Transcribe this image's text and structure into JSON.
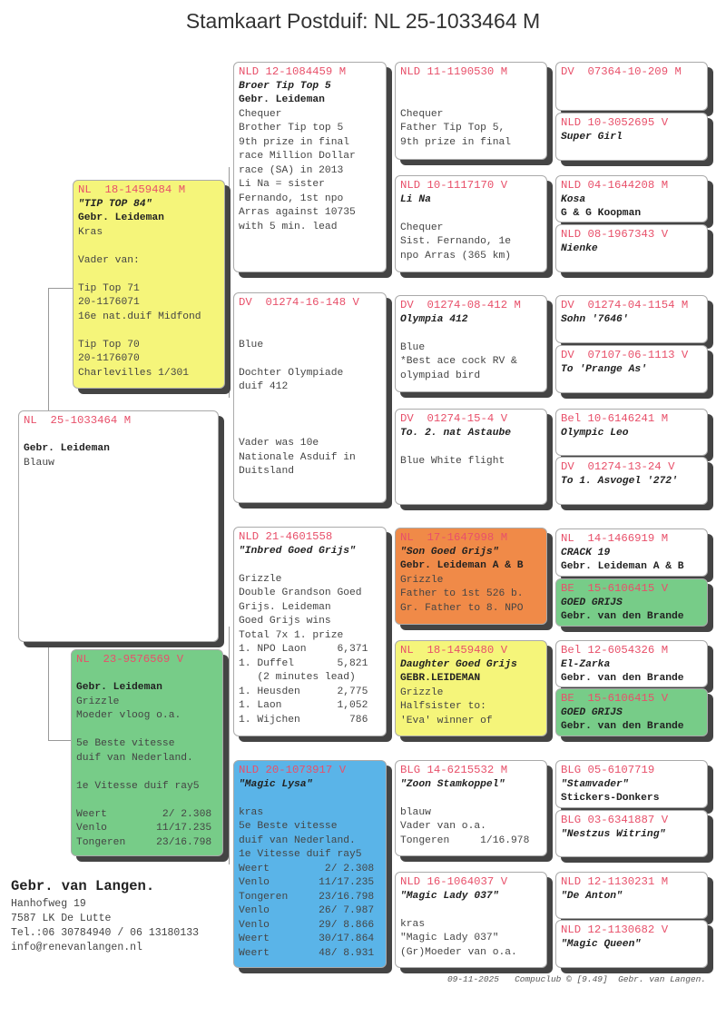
{
  "title": "Stamkaart Postduif: NL  25-1033464 M",
  "colors": {
    "ring": "#e8506a",
    "yellow": "#f5f57a",
    "green": "#77cc88",
    "orange": "#f08a48",
    "blue": "#5ab4e8",
    "white": "#ffffff"
  },
  "cards": {
    "subject": {
      "color": "white",
      "rows": [
        [
          "r",
          "NL  25-1033464 M"
        ],
        [
          "t",
          ""
        ],
        [
          "o",
          "Gebr. Leideman"
        ],
        [
          "t",
          "Blauw"
        ]
      ]
    },
    "sire": {
      "color": "yellow",
      "rows": [
        [
          "r",
          "NL  18-1459484 M"
        ],
        [
          "n",
          "\"TIP TOP 84\""
        ],
        [
          "o",
          "Gebr. Leideman"
        ],
        [
          "t",
          "Kras"
        ],
        [
          "t",
          ""
        ],
        [
          "t",
          "Vader van:"
        ],
        [
          "t",
          ""
        ],
        [
          "t",
          "Tip Top 71"
        ],
        [
          "t",
          "20-1176071"
        ],
        [
          "t",
          "16e nat.duif Midfond"
        ],
        [
          "t",
          ""
        ],
        [
          "t",
          "Tip Top 70"
        ],
        [
          "t",
          "20-1176070"
        ],
        [
          "t",
          "Charlevilles 1/301"
        ]
      ]
    },
    "dam": {
      "color": "green",
      "rows": [
        [
          "r",
          "NL  23-9576569 V"
        ],
        [
          "t",
          ""
        ],
        [
          "o",
          "Gebr. Leideman"
        ],
        [
          "t",
          "Grizzle"
        ],
        [
          "t",
          "Moeder vloog o.a."
        ],
        [
          "t",
          ""
        ],
        [
          "t",
          "5e Beste vitesse"
        ],
        [
          "t",
          "duif van Nederland."
        ],
        [
          "t",
          ""
        ],
        [
          "t",
          "1e Vitesse duif ray5"
        ],
        [
          "t",
          ""
        ],
        [
          "t",
          "Weert         2/ 2.308"
        ],
        [
          "t",
          "Venlo        11/17.235"
        ],
        [
          "t",
          "Tongeren     23/16.798"
        ]
      ]
    },
    "ss": {
      "color": "white",
      "rows": [
        [
          "r",
          "NLD 12-1084459 M"
        ],
        [
          "n",
          "Broer Tip Top 5"
        ],
        [
          "o",
          "Gebr. Leideman"
        ],
        [
          "t",
          "Chequer"
        ],
        [
          "t",
          "Brother Tip top 5"
        ],
        [
          "t",
          "9th prize in final"
        ],
        [
          "t",
          "race Million Dollar"
        ],
        [
          "t",
          "race (SA) in 2013"
        ],
        [
          "t",
          "Li Na = sister"
        ],
        [
          "t",
          "Fernando, 1st npo"
        ],
        [
          "t",
          "Arras against 10735"
        ],
        [
          "t",
          "with 5 min. lead"
        ]
      ]
    },
    "sd": {
      "color": "white",
      "rows": [
        [
          "r",
          "DV  01274-16-148 V"
        ],
        [
          "t",
          ""
        ],
        [
          "t",
          ""
        ],
        [
          "t",
          "Blue"
        ],
        [
          "t",
          ""
        ],
        [
          "t",
          "Dochter Olympiade"
        ],
        [
          "t",
          "duif 412"
        ],
        [
          "t",
          ""
        ],
        [
          "t",
          ""
        ],
        [
          "t",
          ""
        ],
        [
          "t",
          "Vader was 10e"
        ],
        [
          "t",
          "Nationale Asduif in"
        ],
        [
          "t",
          "Duitsland"
        ]
      ]
    },
    "ds": {
      "color": "white",
      "rows": [
        [
          "r",
          "NLD 21-4601558"
        ],
        [
          "n",
          "\"Inbred Goed Grijs\""
        ],
        [
          "t",
          ""
        ],
        [
          "t",
          "Grizzle"
        ],
        [
          "t",
          "Double Grandson Goed"
        ],
        [
          "t",
          "Grijs. Leideman"
        ],
        [
          "t",
          "Goed Grijs wins"
        ],
        [
          "t",
          "Total 7x 1. prize"
        ],
        [
          "t",
          "1. NPO Laon     6,371"
        ],
        [
          "t",
          "1. Duffel       5,821"
        ],
        [
          "t",
          "   (2 minutes lead)"
        ],
        [
          "t",
          "1. Heusden      2,775"
        ],
        [
          "t",
          "1. Laon         1,052"
        ],
        [
          "t",
          "1. Wijchen        786"
        ]
      ]
    },
    "dd": {
      "color": "blue",
      "rows": [
        [
          "r",
          "NLD 20-1073917 V"
        ],
        [
          "n",
          "\"Magic Lysa\""
        ],
        [
          "t",
          ""
        ],
        [
          "t",
          "kras"
        ],
        [
          "t",
          "5e Beste vitesse"
        ],
        [
          "t",
          "duif van Nederland."
        ],
        [
          "t",
          "1e Vitesse duif ray5"
        ],
        [
          "t",
          "Weert         2/ 2.308"
        ],
        [
          "t",
          "Venlo        11/17.235"
        ],
        [
          "t",
          "Tongeren     23/16.798"
        ],
        [
          "t",
          "Venlo        26/ 7.987"
        ],
        [
          "t",
          "Venlo        29/ 8.866"
        ],
        [
          "t",
          "Weert        30/17.864"
        ],
        [
          "t",
          "Weert        48/ 8.931"
        ]
      ]
    },
    "sss": {
      "color": "white",
      "rows": [
        [
          "r",
          "NLD 11-1190530 M"
        ],
        [
          "t",
          ""
        ],
        [
          "t",
          ""
        ],
        [
          "t",
          "Chequer"
        ],
        [
          "t",
          "Father Tip Top 5,"
        ],
        [
          "t",
          "9th prize in final"
        ]
      ]
    },
    "ssd": {
      "color": "white",
      "rows": [
        [
          "r",
          "NLD 10-1117170 V"
        ],
        [
          "n",
          "Li Na"
        ],
        [
          "t",
          ""
        ],
        [
          "t",
          "Chequer"
        ],
        [
          "t",
          "Sist. Fernando, 1e"
        ],
        [
          "t",
          "npo Arras (365 km)"
        ]
      ]
    },
    "sds": {
      "color": "white",
      "rows": [
        [
          "r",
          "DV  01274-08-412 M"
        ],
        [
          "n",
          "Olympia 412"
        ],
        [
          "t",
          ""
        ],
        [
          "t",
          "Blue"
        ],
        [
          "t",
          "*Best ace cock RV &"
        ],
        [
          "t",
          "olympiad bird"
        ]
      ]
    },
    "sdd": {
      "color": "white",
      "rows": [
        [
          "r",
          "DV  01274-15-4 V"
        ],
        [
          "n",
          "To. 2. nat Astaube"
        ],
        [
          "t",
          ""
        ],
        [
          "t",
          "Blue White flight"
        ]
      ]
    },
    "dss": {
      "color": "orange",
      "rows": [
        [
          "r",
          "NL  17-1647998 M"
        ],
        [
          "n",
          "\"Son Goed Grijs\""
        ],
        [
          "o",
          "Gebr. Leideman A & B"
        ],
        [
          "t",
          "Grizzle"
        ],
        [
          "t",
          "Father to 1st 526 b."
        ],
        [
          "t",
          "Gr. Father to 8. NPO"
        ]
      ]
    },
    "dsd": {
      "color": "yellow",
      "rows": [
        [
          "r",
          "NL  18-1459480 V"
        ],
        [
          "n",
          "Daughter Goed Grijs"
        ],
        [
          "o",
          "GEBR.LEIDEMAN"
        ],
        [
          "t",
          "Grizzle"
        ],
        [
          "t",
          "Halfsister to:"
        ],
        [
          "t",
          "'Eva' winner of"
        ]
      ]
    },
    "dds": {
      "color": "white",
      "rows": [
        [
          "r",
          "BLG 14-6215532 M"
        ],
        [
          "n",
          "\"Zoon Stamkoppel\""
        ],
        [
          "t",
          ""
        ],
        [
          "t",
          "blauw"
        ],
        [
          "t",
          "Vader van o.a."
        ],
        [
          "t",
          "Tongeren     1/16.978"
        ]
      ]
    },
    "ddd": {
      "color": "white",
      "rows": [
        [
          "r",
          "NLD 16-1064037 V"
        ],
        [
          "n",
          "\"Magic Lady 037\""
        ],
        [
          "t",
          ""
        ],
        [
          "t",
          "kras"
        ],
        [
          "t",
          "\"Magic Lady 037\""
        ],
        [
          "t",
          "(Gr)Moeder van o.a."
        ]
      ]
    },
    "g5_1": {
      "color": "white",
      "rows": [
        [
          "r",
          "DV  07364-10-209 M"
        ]
      ]
    },
    "g5_2": {
      "color": "white",
      "rows": [
        [
          "r",
          "NLD 10-3052695 V"
        ],
        [
          "n",
          "Super Girl"
        ]
      ]
    },
    "g5_3": {
      "color": "white",
      "rows": [
        [
          "r",
          "NLD 04-1644208 M"
        ],
        [
          "n",
          "Kosa"
        ],
        [
          "o",
          "G & G Koopman"
        ]
      ]
    },
    "g5_4": {
      "color": "white",
      "rows": [
        [
          "r",
          "NLD 08-1967343 V"
        ],
        [
          "n",
          "Nienke"
        ]
      ]
    },
    "g5_5": {
      "color": "white",
      "rows": [
        [
          "r",
          "DV  01274-04-1154 M"
        ],
        [
          "n",
          "Sohn '7646'"
        ]
      ]
    },
    "g5_6": {
      "color": "white",
      "rows": [
        [
          "r",
          "DV  07107-06-1113 V"
        ],
        [
          "n",
          "To 'Prange As'"
        ]
      ]
    },
    "g5_7": {
      "color": "white",
      "rows": [
        [
          "r",
          "Bel 10-6146241 M"
        ],
        [
          "n",
          "Olympic Leo"
        ]
      ]
    },
    "g5_8": {
      "color": "white",
      "rows": [
        [
          "r",
          "DV  01274-13-24 V"
        ],
        [
          "n",
          "To 1. Asvogel '272'"
        ]
      ]
    },
    "g5_9": {
      "color": "white",
      "rows": [
        [
          "r",
          "NL  14-1466919 M"
        ],
        [
          "n",
          "CRACK 19"
        ],
        [
          "o",
          "Gebr. Leideman A & B"
        ]
      ]
    },
    "g5_10": {
      "color": "green",
      "rows": [
        [
          "r",
          "BE  15-6106415 V"
        ],
        [
          "n",
          "GOED GRIJS"
        ],
        [
          "o",
          "Gebr. van den Brande"
        ]
      ]
    },
    "g5_11": {
      "color": "white",
      "rows": [
        [
          "r",
          "Bel 12-6054326 M"
        ],
        [
          "n",
          "El-Zarka"
        ],
        [
          "o",
          "Gebr. van den Brande"
        ]
      ]
    },
    "g5_12": {
      "color": "green",
      "rows": [
        [
          "r",
          "BE  15-6106415 V"
        ],
        [
          "n",
          "GOED GRIJS"
        ],
        [
          "o",
          "Gebr. van den Brande"
        ]
      ]
    },
    "g5_13": {
      "color": "white",
      "rows": [
        [
          "r",
          "BLG 05-6107719"
        ],
        [
          "n",
          "\"Stamvader\""
        ],
        [
          "o",
          "Stickers-Donkers"
        ]
      ]
    },
    "g5_14": {
      "color": "white",
      "rows": [
        [
          "r",
          "BLG 03-6341887 V"
        ],
        [
          "n",
          "\"Nestzus Witring\""
        ]
      ]
    },
    "g5_15": {
      "color": "white",
      "rows": [
        [
          "r",
          "NLD 12-1130231 M"
        ],
        [
          "n",
          "\"De Anton\""
        ]
      ]
    },
    "g5_16": {
      "color": "white",
      "rows": [
        [
          "r",
          "NLD 12-1130682 V"
        ],
        [
          "n",
          "\"Magic Queen\""
        ]
      ]
    }
  },
  "breeder": {
    "name": "Gebr. van Langen.",
    "address": "Hanhofweg 19",
    "city": "7587 LK  De Lutte",
    "phone": "Tel.:06 30784940 / 06 13180133",
    "email": "info@renevanlangen.nl"
  },
  "footer": "09-11-2025   Compuclub © [9.49]  Gebr. van Langen."
}
